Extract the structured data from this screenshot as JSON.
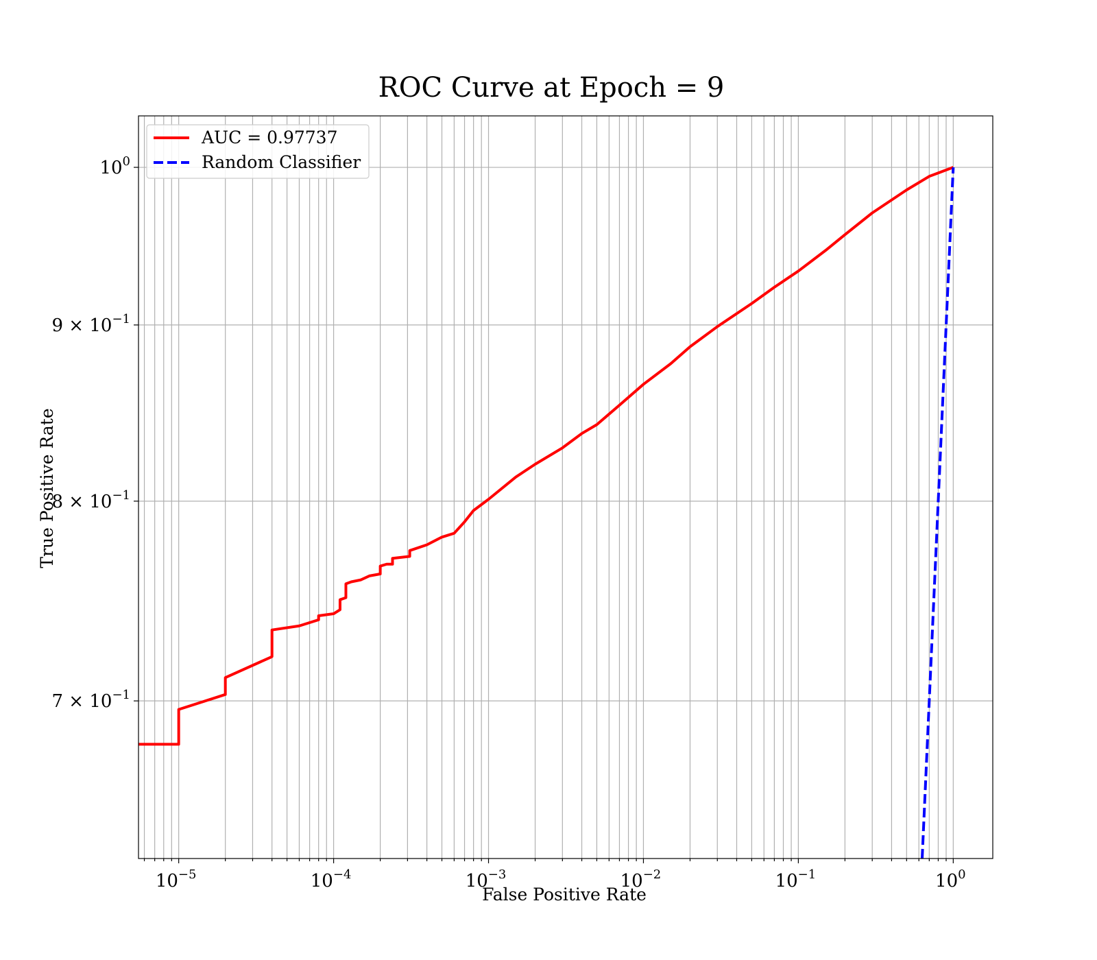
{
  "chart_data": {
    "type": "line",
    "title": "ROC Curve at Epoch = 9",
    "xlabel": "False Positive Rate",
    "ylabel": "True Positive Rate",
    "xscale": "log",
    "yscale": "log",
    "xlim": [
      5.5e-06,
      1.8
    ],
    "ylim": [
      0.63,
      1.035
    ],
    "grid": "both",
    "legend_position": "top-left",
    "x_ticks": [
      {
        "value": 1e-05,
        "base": "10",
        "exp": "−5"
      },
      {
        "value": 0.0001,
        "base": "10",
        "exp": "−4"
      },
      {
        "value": 0.001,
        "base": "10",
        "exp": "−3"
      },
      {
        "value": 0.01,
        "base": "10",
        "exp": "−2"
      },
      {
        "value": 0.1,
        "base": "10",
        "exp": "−1"
      },
      {
        "value": 1,
        "base": "10",
        "exp": "0"
      }
    ],
    "y_ticks": [
      {
        "value": 0.7,
        "base": "7 × 10",
        "exp": "−1"
      },
      {
        "value": 0.8,
        "base": "8 × 10",
        "exp": "−1"
      },
      {
        "value": 0.9,
        "base": "9 × 10",
        "exp": "−1"
      },
      {
        "value": 1.0,
        "base": "10",
        "exp": "0"
      }
    ],
    "series": [
      {
        "name": "AUC = 0.97737",
        "color": "#ff0000",
        "style": "solid",
        "points": [
          [
            5.5e-06,
            0.68
          ],
          [
            1e-05,
            0.68
          ],
          [
            1e-05,
            0.696
          ],
          [
            2e-05,
            0.703
          ],
          [
            2e-05,
            0.711
          ],
          [
            4e-05,
            0.721
          ],
          [
            4e-05,
            0.734
          ],
          [
            6e-05,
            0.736
          ],
          [
            8e-05,
            0.739
          ],
          [
            8e-05,
            0.741
          ],
          [
            0.0001,
            0.742
          ],
          [
            0.00011,
            0.744
          ],
          [
            0.00011,
            0.749
          ],
          [
            0.00012,
            0.75
          ],
          [
            0.00012,
            0.757
          ],
          [
            0.00013,
            0.758
          ],
          [
            0.00015,
            0.759
          ],
          [
            0.00017,
            0.761
          ],
          [
            0.0002,
            0.762
          ],
          [
            0.0002,
            0.766
          ],
          [
            0.00022,
            0.767
          ],
          [
            0.00024,
            0.767
          ],
          [
            0.00024,
            0.77
          ],
          [
            0.00031,
            0.771
          ],
          [
            0.00031,
            0.774
          ],
          [
            0.0004,
            0.777
          ],
          [
            0.0005,
            0.781
          ],
          [
            0.0006,
            0.783
          ],
          [
            0.0007,
            0.789
          ],
          [
            0.0008,
            0.795
          ],
          [
            0.001,
            0.801
          ],
          [
            0.0015,
            0.813
          ],
          [
            0.002,
            0.82
          ],
          [
            0.003,
            0.829
          ],
          [
            0.004,
            0.837
          ],
          [
            0.005,
            0.842
          ],
          [
            0.007,
            0.853
          ],
          [
            0.01,
            0.865
          ],
          [
            0.015,
            0.877
          ],
          [
            0.02,
            0.887
          ],
          [
            0.03,
            0.899
          ],
          [
            0.05,
            0.913
          ],
          [
            0.07,
            0.923
          ],
          [
            0.1,
            0.933
          ],
          [
            0.15,
            0.946
          ],
          [
            0.2,
            0.956
          ],
          [
            0.3,
            0.97
          ],
          [
            0.5,
            0.985
          ],
          [
            0.7,
            0.994
          ],
          [
            1,
            1.0
          ]
        ]
      },
      {
        "name": "Random Classifier",
        "color": "#0000ff",
        "style": "dashed",
        "points": [
          [
            0.63,
            0.63
          ],
          [
            1,
            1.0
          ]
        ]
      }
    ]
  }
}
